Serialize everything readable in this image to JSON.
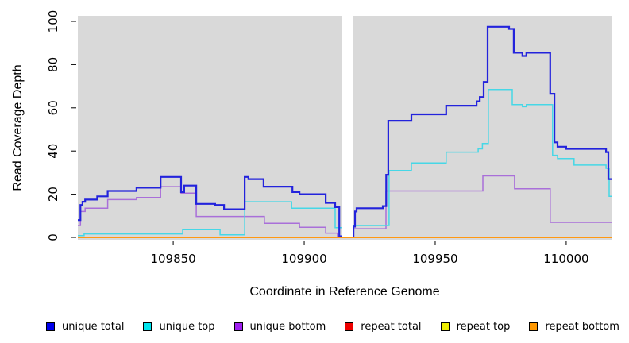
{
  "chart_data": {
    "type": "line",
    "subtype": "step",
    "title": "",
    "xlabel": "Coordinate in Reference Genome",
    "ylabel": "Read Coverage Depth",
    "xlim": [
      109813.6,
      110017.3
    ],
    "ylim": [
      0,
      100
    ],
    "xticks": [
      109850,
      109900,
      109950,
      110000
    ],
    "yticks": [
      0,
      20,
      40,
      60,
      80,
      100
    ],
    "plot_bg_color": "#D9D9D9",
    "gap_band": {
      "x_start": 109914.3,
      "x_end": 109918.6,
      "color": "#FFFFFF"
    },
    "series": [
      {
        "name": "repeat total",
        "color": "#E00000",
        "points": [
          [
            109813.6,
            0
          ],
          [
            110017.3,
            0
          ]
        ]
      },
      {
        "name": "repeat top",
        "color": "#F0F000",
        "points": [
          [
            109813.6,
            0
          ],
          [
            110017.3,
            0
          ]
        ]
      },
      {
        "name": "repeat bottom",
        "color": "#FF9812",
        "points": [
          [
            109813.6,
            0
          ],
          [
            110017.3,
            0
          ]
        ]
      },
      {
        "name": "unique bottom",
        "color": "#A96FD9",
        "points": [
          [
            109813.6,
            5.5
          ],
          [
            109814.6,
            12
          ],
          [
            109816.4,
            13.5
          ],
          [
            109825,
            17.5
          ],
          [
            109836,
            18.5
          ],
          [
            109845.2,
            23.5
          ],
          [
            109853,
            20.5
          ],
          [
            109858.8,
            9.7
          ],
          [
            109884.8,
            6.5
          ],
          [
            109898.2,
            4.7
          ],
          [
            109908.2,
            2
          ],
          [
            109912.7,
            0.3
          ],
          [
            109918.8,
            4
          ],
          [
            109931.2,
            21.5
          ],
          [
            109968.2,
            28.5
          ],
          [
            109980.3,
            22.5
          ],
          [
            109993.9,
            7
          ],
          [
            110017.3,
            7
          ]
        ]
      },
      {
        "name": "unique top",
        "color": "#46D7E6",
        "points": [
          [
            109813.6,
            0.8
          ],
          [
            109816,
            1.6
          ],
          [
            109853.6,
            3.6
          ],
          [
            109867.9,
            1.2
          ],
          [
            109877.3,
            16.5
          ],
          [
            109895.2,
            13.5
          ],
          [
            109911.8,
            4.5
          ],
          [
            109918.8,
            5.5
          ],
          [
            109932.4,
            31
          ],
          [
            109940.9,
            34.5
          ],
          [
            109954.2,
            39.5
          ],
          [
            109966.4,
            41
          ],
          [
            109968,
            43.5
          ],
          [
            109970.3,
            68.5
          ],
          [
            109979.4,
            61.5
          ],
          [
            109983.3,
            60.5
          ],
          [
            109984.8,
            61.5
          ],
          [
            109994.8,
            38
          ],
          [
            109996.7,
            36.5
          ],
          [
            110003,
            33.5
          ],
          [
            110015.2,
            32
          ],
          [
            110016.4,
            19
          ],
          [
            110017.3,
            19
          ]
        ]
      },
      {
        "name": "unique total",
        "color": "#2323DC",
        "points": [
          [
            109813.6,
            8
          ],
          [
            109814.6,
            15
          ],
          [
            109815.4,
            16.5
          ],
          [
            109816.4,
            17.5
          ],
          [
            109821,
            19
          ],
          [
            109825,
            21.5
          ],
          [
            109836,
            23
          ],
          [
            109845.2,
            28
          ],
          [
            109853,
            21
          ],
          [
            109854.2,
            24
          ],
          [
            109858.8,
            15.5
          ],
          [
            109866,
            15
          ],
          [
            109869.4,
            13
          ],
          [
            109877.3,
            28
          ],
          [
            109878.7,
            27
          ],
          [
            109884.5,
            23.5
          ],
          [
            109895.5,
            21
          ],
          [
            109898.2,
            20
          ],
          [
            109908.2,
            16
          ],
          [
            109911.8,
            14
          ],
          [
            109913.4,
            0.5
          ],
          [
            109918.8,
            5
          ],
          [
            109919.4,
            12
          ],
          [
            109920,
            13.5
          ],
          [
            109930,
            14.5
          ],
          [
            109931.3,
            29
          ],
          [
            109932.1,
            54
          ],
          [
            109940.9,
            57
          ],
          [
            109954.2,
            61
          ],
          [
            109965.8,
            63
          ],
          [
            109967,
            65
          ],
          [
            109968.5,
            72
          ],
          [
            109970,
            97.5
          ],
          [
            109978.2,
            96.5
          ],
          [
            109980,
            85.5
          ],
          [
            109983.3,
            84
          ],
          [
            109984.8,
            85.5
          ],
          [
            109993.9,
            66.5
          ],
          [
            109995.5,
            44
          ],
          [
            109996.7,
            42
          ],
          [
            110000,
            41
          ],
          [
            110015.2,
            39.5
          ],
          [
            110016.1,
            27
          ],
          [
            110017.3,
            27
          ]
        ]
      }
    ],
    "legend": [
      {
        "label": "unique total",
        "color": "#0000EE"
      },
      {
        "label": "unique top",
        "color": "#00E5EE"
      },
      {
        "label": "unique bottom",
        "color": "#A020F0"
      },
      {
        "label": "repeat total",
        "color": "#EE0000"
      },
      {
        "label": "repeat top",
        "color": "#EEEE00"
      },
      {
        "label": "repeat bottom",
        "color": "#FF9800"
      }
    ],
    "legend_position": "bottom",
    "grid": false
  }
}
